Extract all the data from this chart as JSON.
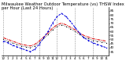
{
  "title": "Milwaukee Weather Outdoor Temperature (vs) THSW Index per Hour (Last 24 Hours)",
  "background_color": "#ffffff",
  "grid_color": "#888888",
  "hours": [
    0,
    1,
    2,
    3,
    4,
    5,
    6,
    7,
    8,
    9,
    10,
    11,
    12,
    13,
    14,
    15,
    16,
    17,
    18,
    19,
    20,
    21,
    22,
    23
  ],
  "temp_outdoor": [
    52,
    50,
    48,
    46,
    44,
    43,
    42,
    44,
    48,
    53,
    58,
    64,
    68,
    70,
    68,
    65,
    62,
    58,
    55,
    53,
    51,
    50,
    49,
    48
  ],
  "thsw_index": [
    48,
    46,
    43,
    41,
    39,
    37,
    35,
    38,
    44,
    52,
    60,
    70,
    78,
    82,
    78,
    72,
    65,
    58,
    52,
    49,
    46,
    44,
    42,
    40
  ],
  "apparent_temp": [
    50,
    48,
    46,
    44,
    42,
    41,
    40,
    42,
    46,
    51,
    56,
    62,
    66,
    68,
    66,
    63,
    60,
    56,
    53,
    51,
    49,
    48,
    47,
    46
  ],
  "temp_color": "#dd0000",
  "thsw_color": "#0000dd",
  "apparent_color": "#111111",
  "ylim_min": 30,
  "ylim_max": 90,
  "ytick_values": [
    35,
    40,
    45,
    50,
    55,
    60,
    65,
    70,
    75,
    80,
    85
  ],
  "ytick_labels": [
    "35",
    "40",
    "45",
    "50",
    "55",
    "60",
    "65",
    "70",
    "75",
    "80",
    "85"
  ],
  "x_grid_positions": [
    0,
    4,
    8,
    12,
    16,
    20
  ],
  "hour_labels": [
    "12",
    "1",
    "2",
    "3",
    "4",
    "5",
    "6",
    "7",
    "8",
    "9",
    "10",
    "11",
    "12",
    "1",
    "2",
    "3",
    "4",
    "5",
    "6",
    "7",
    "8",
    "9",
    "10",
    "11"
  ],
  "title_fontsize": 3.8,
  "tick_fontsize": 3.0,
  "line_width": 0.7,
  "marker_size": 1.0
}
